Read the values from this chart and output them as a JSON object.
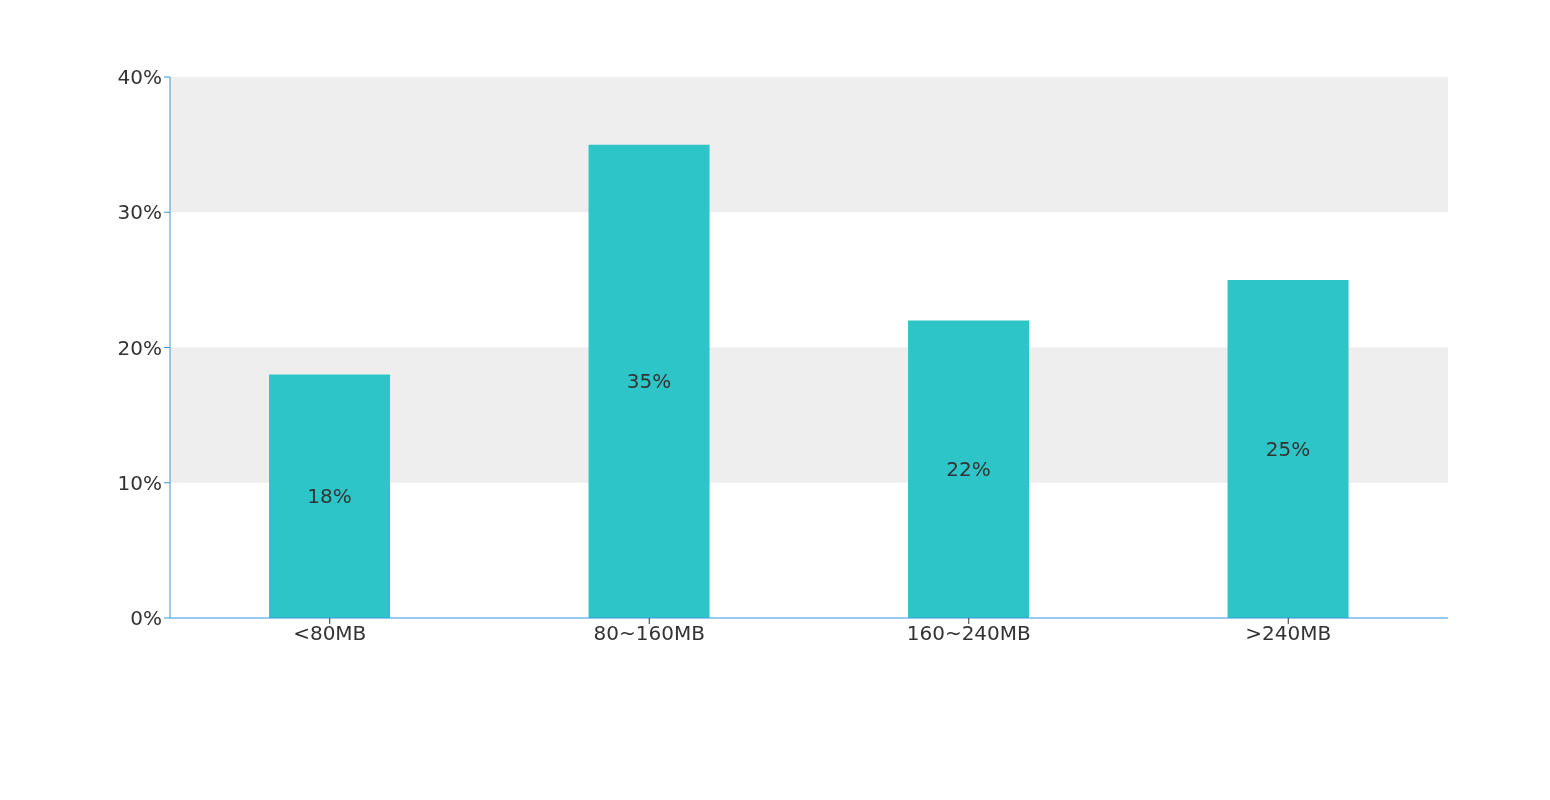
{
  "chart_data": {
    "type": "bar",
    "categories": [
      "<80MB",
      "80~160MB",
      "160~240MB",
      ">240MB"
    ],
    "values": [
      18,
      35,
      22,
      25
    ],
    "color": "#2ec5c8",
    "value_labels": [
      "18%",
      "35%",
      "22%",
      "25%"
    ],
    "ylim": [
      0,
      40
    ],
    "yticks": [
      {
        "value": 0,
        "label": "0%"
      },
      {
        "value": 10,
        "label": "10%"
      },
      {
        "value": 20,
        "label": "20%"
      },
      {
        "value": 30,
        "label": "30%"
      },
      {
        "value": 40,
        "label": "40%"
      }
    ],
    "bands": [
      {
        "axis": "y",
        "from": 10,
        "to": 20,
        "color": "#eeeeee"
      },
      {
        "axis": "y",
        "from": 30,
        "to": 40,
        "color": "#eeeeee"
      }
    ]
  }
}
